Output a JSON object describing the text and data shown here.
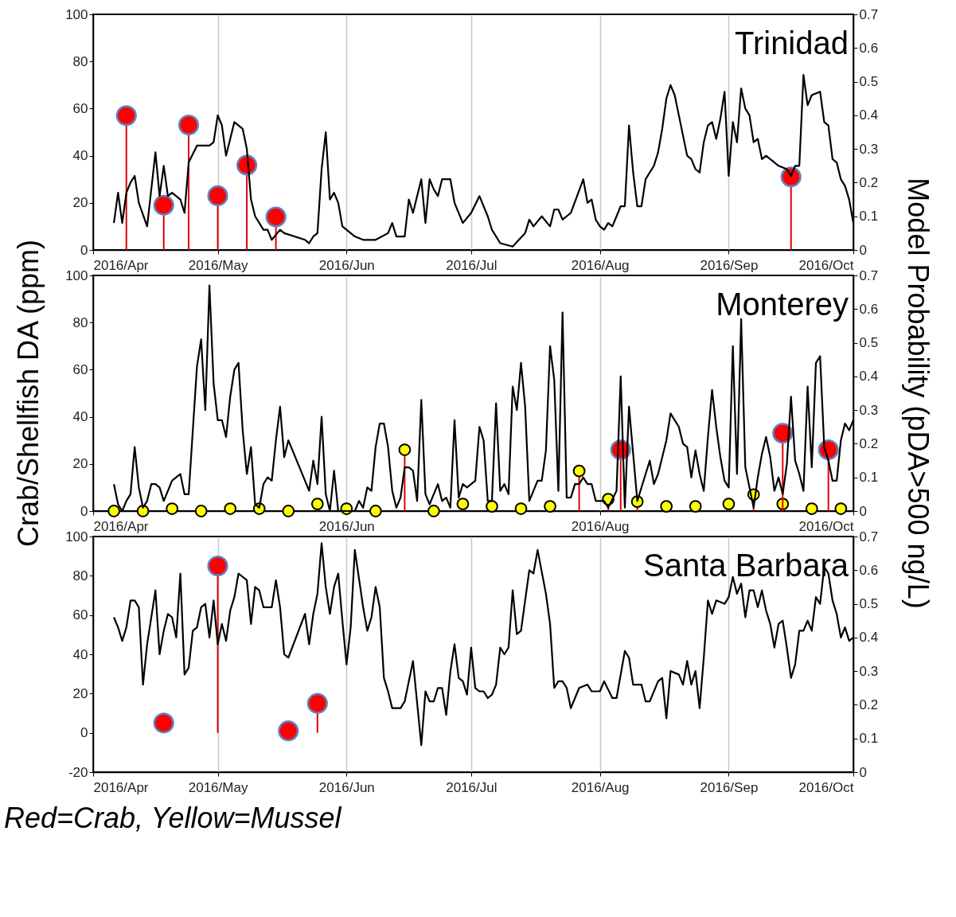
{
  "chart_data": [
    {
      "type": "line",
      "title": "Trinidad",
      "xlim": [
        "2016-04-01",
        "2016-10-01"
      ],
      "xticks": [
        {
          "value": "2016-04-01",
          "label": "2016/Apr"
        },
        {
          "value": "2016-05-01",
          "label": "2016/May"
        },
        {
          "value": "2016-06-01",
          "label": "2016/Jun"
        },
        {
          "value": "2016-07-01",
          "label": "2016/Jul"
        },
        {
          "value": "2016-08-01",
          "label": "2016/Aug"
        },
        {
          "value": "2016-09-01",
          "label": "2016/Sep"
        },
        {
          "value": "2016-10-01",
          "label": "2016/Oct"
        }
      ],
      "ylim": [
        0,
        100
      ],
      "yticks": [
        0,
        20,
        40,
        60,
        80,
        100
      ],
      "y2lim": [
        0,
        0.7
      ],
      "y2ticks": [
        0,
        0.1,
        0.2,
        0.3,
        0.4,
        0.5,
        0.6,
        0.7
      ],
      "grid": "x",
      "series": [
        {
          "axis": "y2",
          "color": "#000000",
          "x": [
            "2016-04-06",
            "2016-04-07",
            "2016-04-08",
            "2016-04-09",
            "2016-04-10",
            "2016-04-11",
            "2016-04-12",
            "2016-04-14",
            "2016-04-16",
            "2016-04-17",
            "2016-04-18",
            "2016-04-19",
            "2016-04-20",
            "2016-04-22",
            "2016-04-23",
            "2016-04-24",
            "2016-04-26",
            "2016-04-28",
            "2016-04-29",
            "2016-04-30",
            "2016-05-01",
            "2016-05-02",
            "2016-05-03",
            "2016-05-04",
            "2016-05-05",
            "2016-05-07",
            "2016-05-08",
            "2016-05-09",
            "2016-05-10",
            "2016-05-11",
            "2016-05-12",
            "2016-05-13",
            "2016-05-14",
            "2016-05-16",
            "2016-05-17",
            "2016-05-22",
            "2016-05-23",
            "2016-05-24",
            "2016-05-25",
            "2016-05-26",
            "2016-05-27",
            "2016-05-28",
            "2016-05-29",
            "2016-05-30",
            "2016-05-31",
            "2016-06-03",
            "2016-06-05",
            "2016-06-08",
            "2016-06-11",
            "2016-06-12",
            "2016-06-13",
            "2016-06-15",
            "2016-06-16",
            "2016-06-17",
            "2016-06-19",
            "2016-06-20",
            "2016-06-21",
            "2016-06-22",
            "2016-06-23",
            "2016-06-24",
            "2016-06-26",
            "2016-06-27",
            "2016-06-29",
            "2016-07-01",
            "2016-07-03",
            "2016-07-05",
            "2016-07-06",
            "2016-07-08",
            "2016-07-11",
            "2016-07-14",
            "2016-07-15",
            "2016-07-16",
            "2016-07-18",
            "2016-07-20",
            "2016-07-21",
            "2016-07-22",
            "2016-07-23",
            "2016-07-25",
            "2016-07-28",
            "2016-07-29",
            "2016-07-30",
            "2016-07-31",
            "2016-08-01",
            "2016-08-02",
            "2016-08-03",
            "2016-08-04",
            "2016-08-06",
            "2016-08-07",
            "2016-08-08",
            "2016-08-09",
            "2016-08-10",
            "2016-08-11",
            "2016-08-12",
            "2016-08-14",
            "2016-08-15",
            "2016-08-16",
            "2016-08-17",
            "2016-08-18",
            "2016-08-19",
            "2016-08-20",
            "2016-08-22",
            "2016-08-23",
            "2016-08-24",
            "2016-08-25",
            "2016-08-26",
            "2016-08-27",
            "2016-08-28",
            "2016-08-29",
            "2016-08-30",
            "2016-08-31",
            "2016-09-01",
            "2016-09-02",
            "2016-09-03",
            "2016-09-04",
            "2016-09-05",
            "2016-09-06",
            "2016-09-07",
            "2016-09-08",
            "2016-09-09",
            "2016-09-10",
            "2016-09-13",
            "2016-09-15",
            "2016-09-16",
            "2016-09-17",
            "2016-09-18",
            "2016-09-19",
            "2016-09-20",
            "2016-09-21",
            "2016-09-23",
            "2016-09-24",
            "2016-09-25",
            "2016-09-26",
            "2016-09-27",
            "2016-09-28",
            "2016-09-29",
            "2016-09-30",
            "2016-10-01"
          ],
          "values": [
            0.08,
            0.17,
            0.08,
            0.17,
            0.2,
            0.22,
            0.14,
            0.07,
            0.29,
            0.16,
            0.25,
            0.16,
            0.17,
            0.15,
            0.11,
            0.26,
            0.31,
            0.31,
            0.31,
            0.32,
            0.4,
            0.37,
            0.28,
            0.33,
            0.38,
            0.36,
            0.3,
            0.15,
            0.1,
            0.08,
            0.06,
            0.06,
            0.03,
            0.06,
            0.05,
            0.03,
            0.02,
            0.04,
            0.05,
            0.24,
            0.35,
            0.15,
            0.17,
            0.14,
            0.07,
            0.04,
            0.03,
            0.03,
            0.05,
            0.08,
            0.04,
            0.04,
            0.15,
            0.11,
            0.21,
            0.08,
            0.21,
            0.18,
            0.16,
            0.21,
            0.21,
            0.14,
            0.08,
            0.11,
            0.16,
            0.1,
            0.06,
            0.02,
            0.01,
            0.05,
            0.09,
            0.07,
            0.1,
            0.07,
            0.12,
            0.12,
            0.09,
            0.11,
            0.21,
            0.14,
            0.15,
            0.09,
            0.07,
            0.06,
            0.08,
            0.07,
            0.13,
            0.13,
            0.37,
            0.23,
            0.13,
            0.13,
            0.21,
            0.25,
            0.29,
            0.36,
            0.45,
            0.49,
            0.46,
            0.4,
            0.28,
            0.27,
            0.24,
            0.23,
            0.32,
            0.37,
            0.38,
            0.33,
            0.39,
            0.47,
            0.22,
            0.38,
            0.32,
            0.48,
            0.42,
            0.4,
            0.32,
            0.33,
            0.27,
            0.28,
            0.25,
            0.24,
            0.22,
            0.25,
            0.25,
            0.52,
            0.43,
            0.46,
            0.47,
            0.38,
            0.37,
            0.27,
            0.26,
            0.21,
            0.19,
            0.15,
            0.08
          ]
        },
        {
          "type": "lollipop",
          "color": "#ff0000",
          "x": [
            "2016-04-09",
            "2016-04-18",
            "2016-04-24",
            "2016-05-01",
            "2016-05-08",
            "2016-05-15",
            "2016-09-16"
          ],
          "values": [
            57,
            19,
            53,
            23,
            36,
            14,
            31
          ]
        }
      ]
    },
    {
      "type": "line",
      "title": "Monterey",
      "ylabel": "Crab/Shellfish DA (ppm)",
      "y2label": "Model Probability (pDA>500 ng/L)",
      "xlim": [
        "2016-04-01",
        "2016-10-01"
      ],
      "xticks": [
        {
          "value": "2016-04-01",
          "label": "2016/Apr"
        },
        {
          "value": "2016-06-01",
          "label": "2016/Jun"
        },
        {
          "value": "2016-08-01",
          "label": "2016/Aug"
        },
        {
          "value": "2016-10-01",
          "label": "2016/Oct"
        }
      ],
      "ylim": [
        0,
        100
      ],
      "yticks": [
        0,
        20,
        40,
        60,
        80,
        100
      ],
      "y2lim": [
        0,
        0.7
      ],
      "y2ticks": [
        0,
        0.1,
        0.2,
        0.3,
        0.4,
        0.5,
        0.6,
        0.7
      ],
      "grid": "x",
      "series": [
        {
          "axis": "y2",
          "color": "#000000",
          "x": [
            "2016-04-06",
            "2016-04-07",
            "2016-04-08",
            "2016-04-09",
            "2016-04-10",
            "2016-04-11",
            "2016-04-12",
            "2016-04-13",
            "2016-04-14",
            "2016-04-15",
            "2016-04-16",
            "2016-04-17",
            "2016-04-18",
            "2016-04-19",
            "2016-04-20",
            "2016-04-21",
            "2016-04-22",
            "2016-04-23",
            "2016-04-24",
            "2016-04-25",
            "2016-04-26",
            "2016-04-27",
            "2016-04-28",
            "2016-04-29",
            "2016-04-30",
            "2016-05-01",
            "2016-05-02",
            "2016-05-03",
            "2016-05-04",
            "2016-05-05",
            "2016-05-06",
            "2016-05-07",
            "2016-05-08",
            "2016-05-09",
            "2016-05-10",
            "2016-05-11",
            "2016-05-12",
            "2016-05-13",
            "2016-05-14",
            "2016-05-15",
            "2016-05-16",
            "2016-05-17",
            "2016-05-18",
            "2016-05-22",
            "2016-05-23",
            "2016-05-24",
            "2016-05-25",
            "2016-05-26",
            "2016-05-27",
            "2016-05-28",
            "2016-05-29",
            "2016-05-30",
            "2016-05-31",
            "2016-06-01",
            "2016-06-03",
            "2016-06-04",
            "2016-06-05",
            "2016-06-06",
            "2016-06-07",
            "2016-06-08",
            "2016-06-09",
            "2016-06-10",
            "2016-06-11",
            "2016-06-12",
            "2016-06-13",
            "2016-06-14",
            "2016-06-15",
            "2016-06-16",
            "2016-06-17",
            "2016-06-18",
            "2016-06-19",
            "2016-06-20",
            "2016-06-21",
            "2016-06-22",
            "2016-06-23",
            "2016-06-24",
            "2016-06-25",
            "2016-06-26",
            "2016-06-27",
            "2016-06-28",
            "2016-06-29",
            "2016-06-30",
            "2016-07-01",
            "2016-07-02",
            "2016-07-03",
            "2016-07-04",
            "2016-07-05",
            "2016-07-06",
            "2016-07-07",
            "2016-07-08",
            "2016-07-09",
            "2016-07-10",
            "2016-07-11",
            "2016-07-12",
            "2016-07-13",
            "2016-07-14",
            "2016-07-15",
            "2016-07-16",
            "2016-07-17",
            "2016-07-18",
            "2016-07-19",
            "2016-07-20",
            "2016-07-21",
            "2016-07-22",
            "2016-07-23",
            "2016-07-24",
            "2016-07-25",
            "2016-07-26",
            "2016-07-27",
            "2016-07-28",
            "2016-07-29",
            "2016-07-30",
            "2016-07-31",
            "2016-08-01",
            "2016-08-02",
            "2016-08-03",
            "2016-08-05",
            "2016-08-06",
            "2016-08-07",
            "2016-08-08",
            "2016-08-10",
            "2016-08-12",
            "2016-08-13",
            "2016-08-14",
            "2016-08-15",
            "2016-08-17",
            "2016-08-18",
            "2016-08-20",
            "2016-08-21",
            "2016-08-22",
            "2016-08-23",
            "2016-08-24",
            "2016-08-25",
            "2016-08-26",
            "2016-08-27",
            "2016-08-28",
            "2016-08-29",
            "2016-08-30",
            "2016-08-31",
            "2016-09-01",
            "2016-09-02",
            "2016-09-03",
            "2016-09-04",
            "2016-09-05",
            "2016-09-06",
            "2016-09-07",
            "2016-09-08",
            "2016-09-09",
            "2016-09-10",
            "2016-09-11",
            "2016-09-12",
            "2016-09-13",
            "2016-09-14",
            "2016-09-15",
            "2016-09-16",
            "2016-09-17",
            "2016-09-18",
            "2016-09-19",
            "2016-09-20",
            "2016-09-21",
            "2016-09-22",
            "2016-09-23",
            "2016-09-24",
            "2016-09-25",
            "2016-09-26",
            "2016-09-27",
            "2016-09-28",
            "2016-09-29",
            "2016-09-30",
            "2016-10-01"
          ],
          "values": [
            0.08,
            0.02,
            0,
            0.03,
            0.05,
            0.19,
            0.07,
            0.01,
            0.03,
            0.08,
            0.08,
            0.07,
            0.03,
            0.06,
            0.09,
            0.1,
            0.11,
            0.05,
            0.05,
            0.24,
            0.43,
            0.51,
            0.3,
            0.67,
            0.38,
            0.27,
            0.27,
            0.22,
            0.34,
            0.42,
            0.44,
            0.24,
            0.11,
            0.19,
            0.02,
            0.01,
            0.08,
            0.1,
            0.09,
            0.21,
            0.31,
            0.16,
            0.21,
            0.09,
            0.06,
            0.15,
            0.08,
            0.28,
            0.05,
            0,
            0.12,
            0,
            0,
            0,
            0,
            0.03,
            0.01,
            0.07,
            0.06,
            0.19,
            0.26,
            0.26,
            0.19,
            0.06,
            0.01,
            0.04,
            0.13,
            0.13,
            0.12,
            0.03,
            0.33,
            0.05,
            0.02,
            0.05,
            0.08,
            0.03,
            0.04,
            0.01,
            0.27,
            0.04,
            0.08,
            0.07,
            0.08,
            0.09,
            0.25,
            0.21,
            0.03,
            0.03,
            0.32,
            0.06,
            0.08,
            0.05,
            0.37,
            0.3,
            0.44,
            0.31,
            0.03,
            0.06,
            0.09,
            0.09,
            0.18,
            0.49,
            0.39,
            0.06,
            0.59,
            0.04,
            0.04,
            0.08,
            0.08,
            0.1,
            0.08,
            0.08,
            0.03,
            0.03,
            0.03,
            0.01,
            0.06,
            0.4,
            0.01,
            0.31,
            0.03,
            0.11,
            0.15,
            0.08,
            0.11,
            0.21,
            0.29,
            0.25,
            0.2,
            0.19,
            0.1,
            0.18,
            0.11,
            0.06,
            0.22,
            0.36,
            0.25,
            0.16,
            0.09,
            0.07,
            0.49,
            0.11,
            0.57,
            0.13,
            0.07,
            0.01,
            0.1,
            0.17,
            0.22,
            0.16,
            0.06,
            0.1,
            0.05,
            0.14,
            0.34,
            0.15,
            0.11,
            0.06,
            0.37,
            0.13,
            0.44,
            0.46,
            0.19,
            0.15,
            0.09,
            0.09,
            0.21,
            0.26,
            0.24,
            0.27
          ]
        },
        {
          "type": "lollipop",
          "color": "#ffff00",
          "x": [
            "2016-04-06",
            "2016-04-13",
            "2016-04-20",
            "2016-04-27",
            "2016-05-04",
            "2016-05-11",
            "2016-05-18",
            "2016-05-25",
            "2016-06-01",
            "2016-06-08",
            "2016-06-15",
            "2016-06-22",
            "2016-06-29",
            "2016-07-06",
            "2016-07-13",
            "2016-07-20",
            "2016-07-27",
            "2016-08-03",
            "2016-08-10",
            "2016-08-17",
            "2016-08-24",
            "2016-09-01",
            "2016-09-07",
            "2016-09-14",
            "2016-09-21",
            "2016-09-28"
          ],
          "values": [
            0,
            0,
            1,
            0,
            1,
            1,
            0,
            3,
            1,
            0,
            26,
            0,
            3,
            2,
            1,
            2,
            17,
            5,
            4,
            2,
            2,
            3,
            7,
            3,
            1,
            1
          ]
        },
        {
          "type": "lollipop",
          "color": "#ff0000",
          "x": [
            "2016-08-06",
            "2016-09-14",
            "2016-09-25"
          ],
          "values": [
            26,
            33,
            26
          ]
        }
      ]
    },
    {
      "type": "line",
      "title": "Santa Barbara",
      "annotations": [
        "Red=Crab, Yellow=Mussel"
      ],
      "xlim": [
        "2016-04-01",
        "2016-10-01"
      ],
      "xticks": [
        {
          "value": "2016-04-01",
          "label": "2016/Apr"
        },
        {
          "value": "2016-05-01",
          "label": "2016/May"
        },
        {
          "value": "2016-06-01",
          "label": "2016/Jun"
        },
        {
          "value": "2016-07-01",
          "label": "2016/Jul"
        },
        {
          "value": "2016-08-01",
          "label": "2016/Aug"
        },
        {
          "value": "2016-09-01",
          "label": "2016/Sep"
        },
        {
          "value": "2016-10-01",
          "label": "2016/Oct"
        }
      ],
      "ylim": [
        -20,
        100
      ],
      "yticks": [
        -20,
        0,
        20,
        40,
        60,
        80,
        100
      ],
      "y2lim": [
        0,
        0.7
      ],
      "y2ticks": [
        0,
        0.1,
        0.2,
        0.3,
        0.4,
        0.5,
        0.6,
        0.7
      ],
      "grid": "x",
      "series": [
        {
          "axis": "y2",
          "color": "#000000",
          "x": [
            "2016-04-06",
            "2016-04-07",
            "2016-04-08",
            "2016-04-09",
            "2016-04-10",
            "2016-04-11",
            "2016-04-12",
            "2016-04-13",
            "2016-04-14",
            "2016-04-15",
            "2016-04-16",
            "2016-04-17",
            "2016-04-18",
            "2016-04-19",
            "2016-04-20",
            "2016-04-21",
            "2016-04-22",
            "2016-04-23",
            "2016-04-24",
            "2016-04-25",
            "2016-04-26",
            "2016-04-27",
            "2016-04-28",
            "2016-04-29",
            "2016-04-30",
            "2016-05-01",
            "2016-05-02",
            "2016-05-03",
            "2016-05-04",
            "2016-05-05",
            "2016-05-06",
            "2016-05-08",
            "2016-05-09",
            "2016-05-10",
            "2016-05-11",
            "2016-05-12",
            "2016-05-14",
            "2016-05-15",
            "2016-05-16",
            "2016-05-17",
            "2016-05-18",
            "2016-05-22",
            "2016-05-23",
            "2016-05-24",
            "2016-05-25",
            "2016-05-26",
            "2016-05-27",
            "2016-05-28",
            "2016-05-29",
            "2016-05-30",
            "2016-05-31",
            "2016-06-01",
            "2016-06-02",
            "2016-06-03",
            "2016-06-05",
            "2016-06-06",
            "2016-06-07",
            "2016-06-08",
            "2016-06-09",
            "2016-06-10",
            "2016-06-11",
            "2016-06-12",
            "2016-06-14",
            "2016-06-15",
            "2016-06-17",
            "2016-06-19",
            "2016-06-20",
            "2016-06-21",
            "2016-06-22",
            "2016-06-23",
            "2016-06-24",
            "2016-06-25",
            "2016-06-26",
            "2016-06-27",
            "2016-06-28",
            "2016-06-29",
            "2016-06-30",
            "2016-07-01",
            "2016-07-02",
            "2016-07-03",
            "2016-07-04",
            "2016-07-05",
            "2016-07-06",
            "2016-07-07",
            "2016-07-08",
            "2016-07-09",
            "2016-07-10",
            "2016-07-11",
            "2016-07-12",
            "2016-07-13",
            "2016-07-14",
            "2016-07-15",
            "2016-07-16",
            "2016-07-17",
            "2016-07-19",
            "2016-07-20",
            "2016-07-21",
            "2016-07-22",
            "2016-07-23",
            "2016-07-24",
            "2016-07-25",
            "2016-07-27",
            "2016-07-29",
            "2016-07-30",
            "2016-08-01",
            "2016-08-02",
            "2016-08-04",
            "2016-08-05",
            "2016-08-07",
            "2016-08-08",
            "2016-08-09",
            "2016-08-11",
            "2016-08-12",
            "2016-08-13",
            "2016-08-15",
            "2016-08-16",
            "2016-08-17",
            "2016-08-18",
            "2016-08-20",
            "2016-08-21",
            "2016-08-22",
            "2016-08-23",
            "2016-08-24",
            "2016-08-25",
            "2016-08-26",
            "2016-08-27",
            "2016-08-28",
            "2016-08-29",
            "2016-08-31",
            "2016-09-01",
            "2016-09-02",
            "2016-09-03",
            "2016-09-04",
            "2016-09-05",
            "2016-09-06",
            "2016-09-07",
            "2016-09-08",
            "2016-09-09",
            "2016-09-10",
            "2016-09-11",
            "2016-09-12",
            "2016-09-13",
            "2016-09-14",
            "2016-09-15",
            "2016-09-16",
            "2016-09-17",
            "2016-09-18",
            "2016-09-19",
            "2016-09-20",
            "2016-09-21",
            "2016-09-22",
            "2016-09-23",
            "2016-09-24",
            "2016-09-25",
            "2016-09-26",
            "2016-09-27",
            "2016-09-28",
            "2016-09-29",
            "2016-09-30",
            "2016-10-01"
          ],
          "values": [
            0.46,
            0.43,
            0.39,
            0.43,
            0.51,
            0.51,
            0.49,
            0.26,
            0.38,
            0.46,
            0.54,
            0.35,
            0.42,
            0.47,
            0.46,
            0.4,
            0.59,
            0.29,
            0.31,
            0.42,
            0.43,
            0.49,
            0.5,
            0.4,
            0.51,
            0.38,
            0.44,
            0.39,
            0.48,
            0.52,
            0.59,
            0.57,
            0.44,
            0.55,
            0.54,
            0.49,
            0.49,
            0.57,
            0.49,
            0.35,
            0.34,
            0.47,
            0.38,
            0.47,
            0.53,
            0.68,
            0.55,
            0.47,
            0.55,
            0.59,
            0.45,
            0.32,
            0.43,
            0.66,
            0.49,
            0.42,
            0.46,
            0.55,
            0.49,
            0.28,
            0.24,
            0.19,
            0.19,
            0.21,
            0.33,
            0.08,
            0.24,
            0.21,
            0.21,
            0.25,
            0.25,
            0.17,
            0.3,
            0.38,
            0.28,
            0.27,
            0.23,
            0.37,
            0.25,
            0.24,
            0.24,
            0.22,
            0.23,
            0.26,
            0.37,
            0.35,
            0.37,
            0.54,
            0.41,
            0.42,
            0.51,
            0.6,
            0.59,
            0.66,
            0.53,
            0.44,
            0.25,
            0.27,
            0.27,
            0.25,
            0.19,
            0.25,
            0.26,
            0.24,
            0.24,
            0.27,
            0.22,
            0.22,
            0.36,
            0.34,
            0.26,
            0.26,
            0.21,
            0.21,
            0.27,
            0.28,
            0.16,
            0.3,
            0.29,
            0.26,
            0.33,
            0.26,
            0.3,
            0.19,
            0.34,
            0.51,
            0.47,
            0.51,
            0.5,
            0.52,
            0.58,
            0.53,
            0.56,
            0.46,
            0.54,
            0.54,
            0.49,
            0.54,
            0.48,
            0.44,
            0.37,
            0.44,
            0.45,
            0.37,
            0.28,
            0.32,
            0.42,
            0.42,
            0.45,
            0.42,
            0.52,
            0.5,
            0.61,
            0.59,
            0.51,
            0.47,
            0.4,
            0.43,
            0.39,
            0.4
          ]
        },
        {
          "type": "lollipop",
          "color": "#ff0000",
          "x": [
            "2016-04-18",
            "2016-05-01",
            "2016-05-18",
            "2016-05-25"
          ],
          "values": [
            5,
            85,
            1,
            15
          ]
        }
      ]
    }
  ]
}
